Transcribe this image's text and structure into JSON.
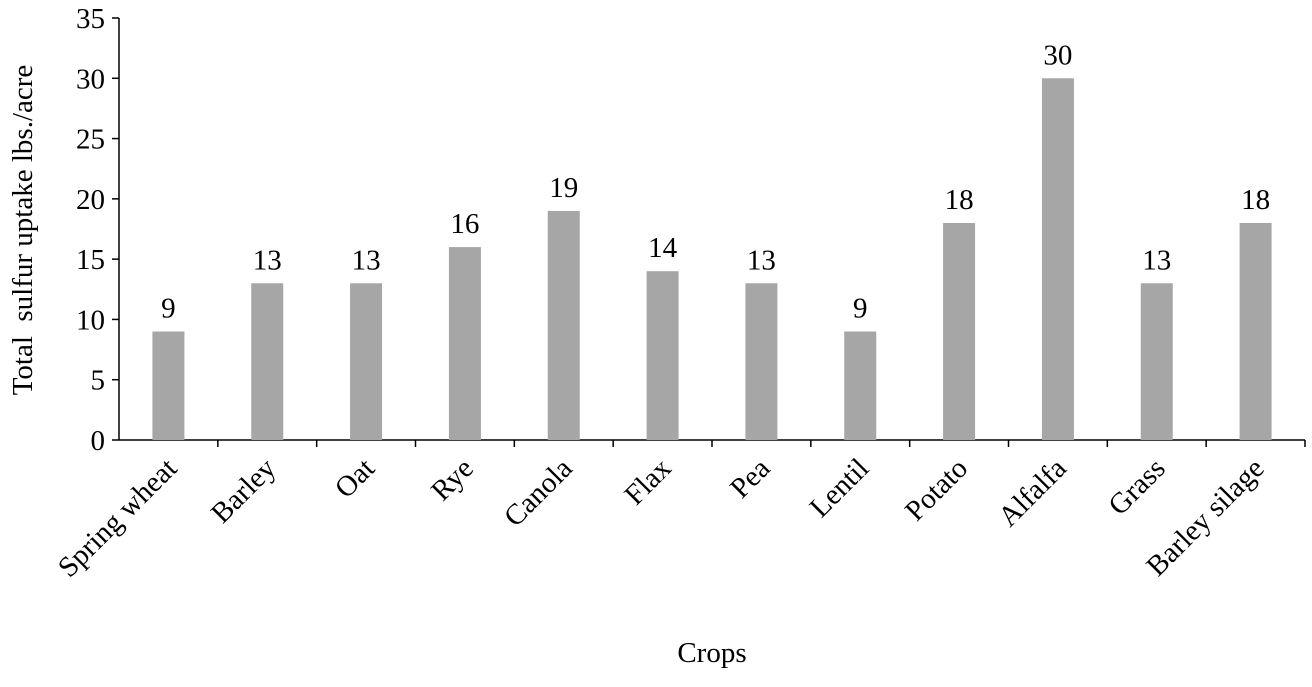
{
  "chart_data": {
    "type": "bar",
    "x_label": "Crops",
    "y_label": "Total  sulfur uptake lbs./acre",
    "categories": [
      "Spring wheat",
      "Barley",
      "Oat",
      "Rye",
      "Canola",
      "Flax",
      "Pea",
      "Lentil",
      "Potato",
      "Alfalfa",
      "Grass",
      "Barley silage"
    ],
    "values": [
      9,
      13,
      13,
      16,
      19,
      14,
      13,
      9,
      18,
      30,
      13,
      18
    ],
    "color": "#a6a6a6",
    "ylim": [
      0,
      35
    ],
    "yticks": [
      0,
      5,
      10,
      15,
      20,
      25,
      30,
      35
    ],
    "grid": false,
    "data_labels": true
  }
}
